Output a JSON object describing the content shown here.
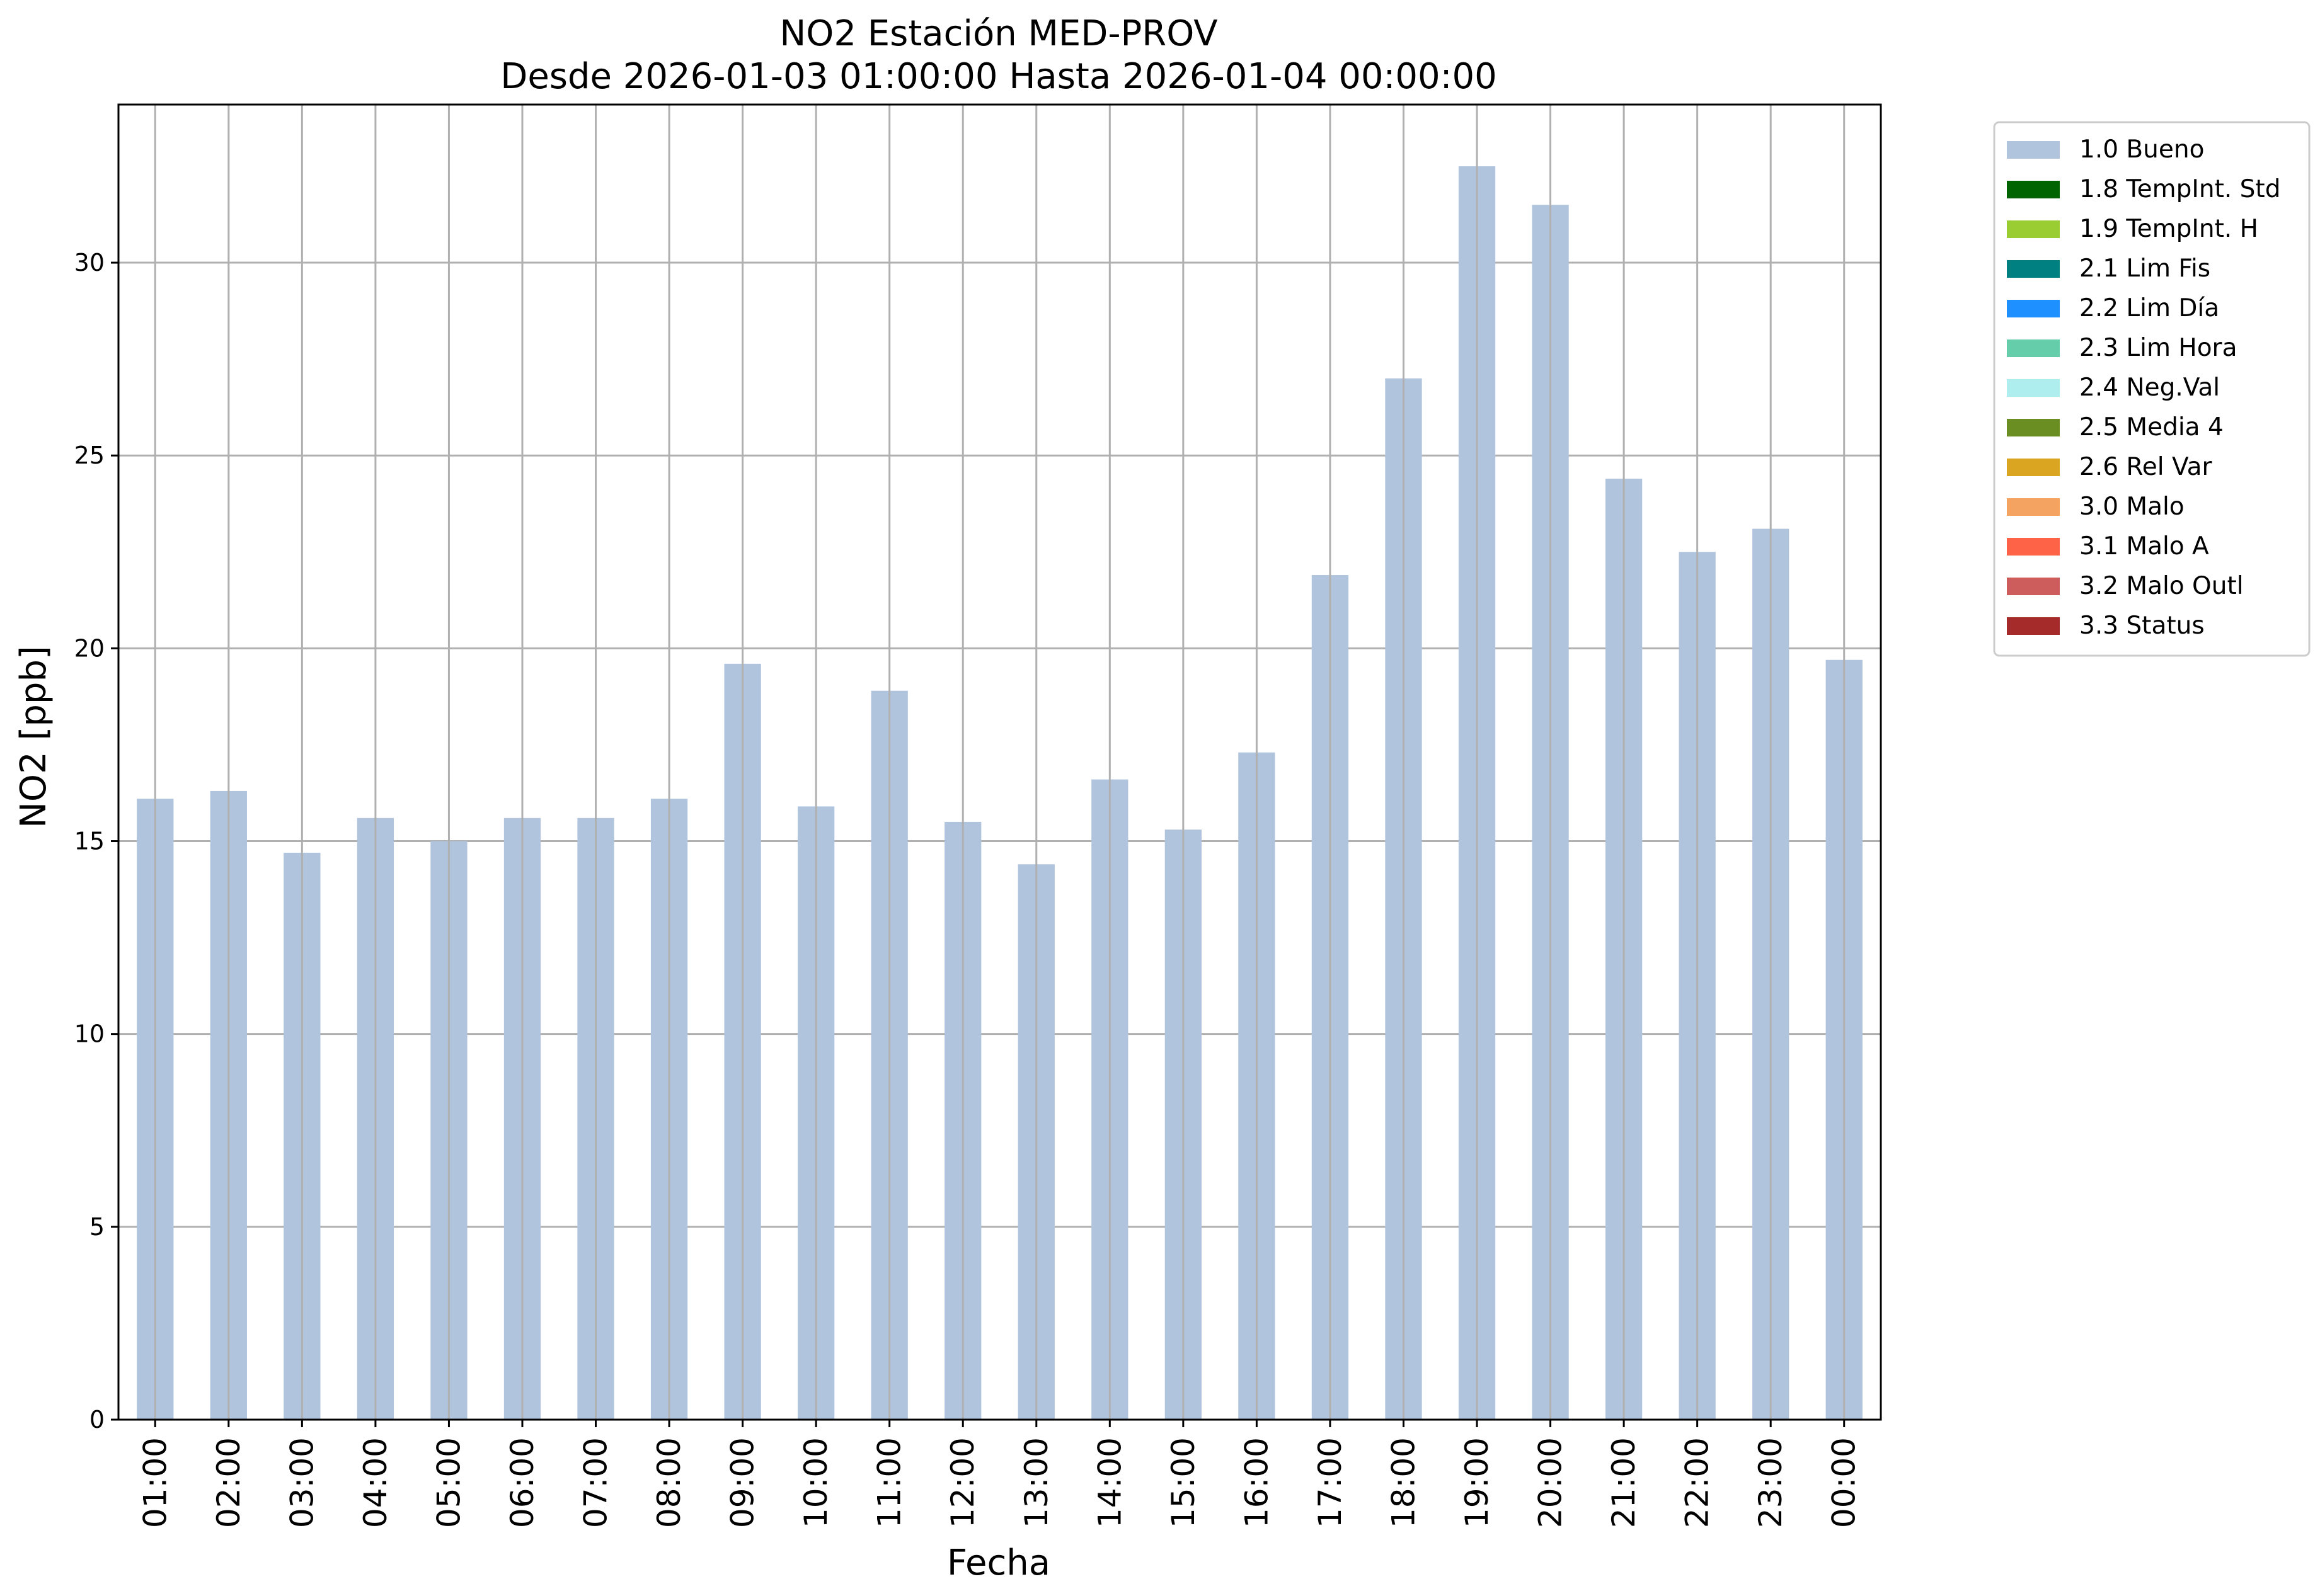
{
  "chart_data": {
    "type": "bar",
    "title": "NO2 Estación MED-PROV",
    "subtitle": "Desde 2026-01-03 01:00:00 Hasta 2026-01-04 00:00:00",
    "xlabel": "Fecha",
    "ylabel": "NO2 [ppb]",
    "ylim": [
      0,
      34.1
    ],
    "yticks": [
      0,
      5,
      10,
      15,
      20,
      25,
      30
    ],
    "grid": true,
    "legend_position": "outside-top-right",
    "categories": [
      "01:00",
      "02:00",
      "03:00",
      "04:00",
      "05:00",
      "06:00",
      "07:00",
      "08:00",
      "09:00",
      "10:00",
      "11:00",
      "12:00",
      "13:00",
      "14:00",
      "15:00",
      "16:00",
      "17:00",
      "18:00",
      "19:00",
      "20:00",
      "21:00",
      "22:00",
      "23:00",
      "00:00"
    ],
    "series": [
      {
        "name": "1.0 Bueno",
        "color": "#b0c4de",
        "values": [
          16.1,
          16.3,
          14.7,
          15.6,
          15.0,
          15.6,
          15.6,
          16.1,
          19.6,
          15.9,
          18.9,
          15.5,
          14.4,
          16.6,
          15.3,
          17.3,
          21.9,
          27.0,
          32.5,
          31.5,
          24.4,
          22.5,
          23.1,
          19.7
        ]
      }
    ],
    "legend": [
      {
        "label": "1.0 Bueno",
        "color": "#b0c4de"
      },
      {
        "label": "1.8 TempInt. Std",
        "color": "#006400"
      },
      {
        "label": "1.9 TempInt. H",
        "color": "#9acd32"
      },
      {
        "label": "2.1 Lim Fis",
        "color": "#008080"
      },
      {
        "label": "2.2 Lim Día",
        "color": "#1e90ff"
      },
      {
        "label": "2.3 Lim Hora",
        "color": "#66cdaa"
      },
      {
        "label": "2.4 Neg.Val",
        "color": "#afeeee"
      },
      {
        "label": "2.5 Media 4",
        "color": "#6b8e23"
      },
      {
        "label": "2.6 Rel Var",
        "color": "#daa520"
      },
      {
        "label": "3.0 Malo",
        "color": "#f4a460"
      },
      {
        "label": "3.1 Malo A",
        "color": "#ff6347"
      },
      {
        "label": "3.2 Malo Outl",
        "color": "#cd5c5c"
      },
      {
        "label": "3.3 Status",
        "color": "#a52a2a"
      }
    ]
  }
}
